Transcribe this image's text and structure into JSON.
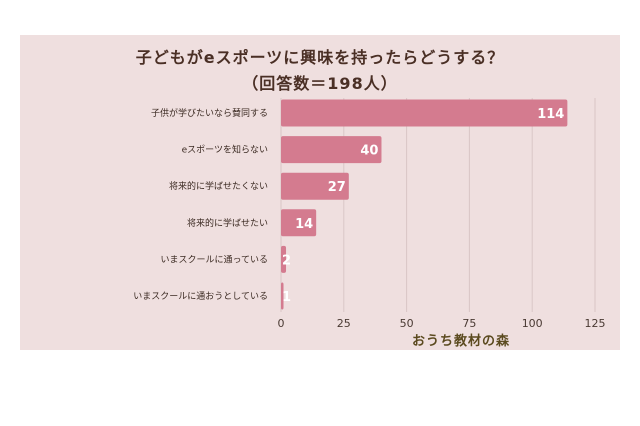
{
  "title_line1": "子どもがeスポーツに興味を持ったらどうする？",
  "title_line2": "（回答数＝198人）",
  "credit": "おうち教材の森",
  "colors": {
    "background": "#efdfdf",
    "bar": "#d47b8f",
    "grid": "#d9c6c6"
  },
  "chart_data": {
    "type": "bar",
    "orientation": "horizontal",
    "categories": [
      "子供が学びたいなら賛同する",
      "eスポーツを知らない",
      "将来的に学ばせたくない",
      "将来的に学ばせたい",
      "いまスクールに通っている",
      "いまスクールに通おうとしている"
    ],
    "values": [
      114,
      40,
      27,
      14,
      2,
      1
    ],
    "xlim": [
      0,
      125
    ],
    "xticks": [
      0,
      25,
      50,
      75,
      100,
      125
    ],
    "grid": true
  }
}
